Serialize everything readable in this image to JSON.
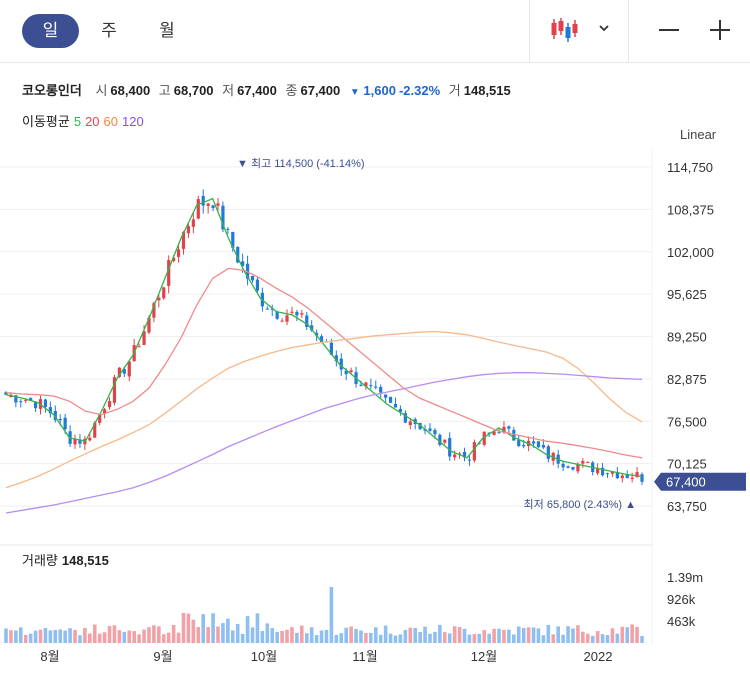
{
  "tabs": [
    {
      "label": "일",
      "active": true
    },
    {
      "label": "주",
      "active": false
    },
    {
      "label": "월",
      "active": false
    }
  ],
  "toolbar": {
    "chart_type_icon": "candlestick-icon",
    "dropdown_icon": "chevron-down-icon",
    "zoom_out_icon": "minus-icon",
    "zoom_in_icon": "plus-icon"
  },
  "quote": {
    "name": "코오롱인더",
    "open_label": "시",
    "open": "68,400",
    "high_label": "고",
    "high": "68,700",
    "low_label": "저",
    "low": "67,400",
    "close_label": "종",
    "close": "67,400",
    "change": "1,600",
    "change_pct": "-2.32%",
    "volume_label": "거",
    "volume": "148,515"
  },
  "moving_average": {
    "title": "이동평균",
    "periods": [
      {
        "label": "5",
        "color": "#36b24a"
      },
      {
        "label": "20",
        "color": "#e04848"
      },
      {
        "label": "60",
        "color": "#f0883c"
      },
      {
        "label": "120",
        "color": "#8a4fe0"
      }
    ]
  },
  "scale_label": "Linear",
  "volume_panel": {
    "title": "거래량",
    "value": "148,515"
  },
  "colors": {
    "up": "#e0424b",
    "down": "#1f7ad8",
    "up_vol": "#f2a1a6",
    "down_vol": "#8fbff0",
    "accent": "#3c4f92"
  },
  "chart_data": {
    "type": "candlestick",
    "y_ticks": [
      "114,750",
      "108,375",
      "102,000",
      "95,625",
      "89,250",
      "82,875",
      "76,500",
      "70,125",
      "63,750"
    ],
    "y_tick_values": [
      114750,
      108375,
      102000,
      95625,
      89250,
      82875,
      76500,
      70125,
      63750
    ],
    "x_ticks": [
      "8월",
      "9월",
      "10월",
      "11월",
      "12월",
      "2022"
    ],
    "volume_ticks": [
      "1.39m",
      "926k",
      "463k"
    ],
    "volume_tick_values": [
      1390000,
      926000,
      463000
    ],
    "current_price": "67,400",
    "high_annotation": {
      "label": "최고",
      "value": "114,500 (-41.14%)"
    },
    "low_annotation": {
      "label": "최저",
      "value": "65,800 (2.43%)"
    },
    "ma_levels": {
      "ma5": [
        80500,
        80000,
        79300,
        77500,
        74000,
        73500,
        78000,
        83000,
        86500,
        92000,
        98000,
        104000,
        109000,
        110000,
        104000,
        99000,
        95000,
        93000,
        92500,
        91000,
        88000,
        85000,
        83000,
        81000,
        79000,
        77500,
        76000,
        74000,
        72000,
        71000,
        74000,
        75500,
        74000,
        73000,
        71500,
        70500,
        70000,
        69500,
        69000,
        68500,
        68200
      ],
      "ma20": [
        80800,
        80600,
        80500,
        80300,
        79500,
        78000,
        77500,
        78300,
        79500,
        81500,
        85000,
        89000,
        94000,
        98000,
        99500,
        99200,
        98000,
        96500,
        95200,
        93500,
        91500,
        89500,
        87500,
        85500,
        83500,
        81500,
        80000,
        79000,
        78000,
        77000,
        76000,
        75000,
        74500,
        74000,
        73500,
        73200,
        72800,
        72400,
        71900,
        71400,
        71000
      ],
      "ma60": [
        66500,
        67300,
        68200,
        69300,
        70500,
        71600,
        72700,
        73700,
        74800,
        76000,
        77700,
        79500,
        81400,
        83000,
        84500,
        85500,
        86300,
        87000,
        87600,
        88000,
        88400,
        88700,
        89000,
        89300,
        89500,
        89700,
        89900,
        90000,
        89800,
        89500,
        89000,
        88400,
        87900,
        87400,
        86900,
        86000,
        84400,
        82200,
        79800,
        77800,
        76400
      ],
      "ma120": [
        62700,
        63100,
        63500,
        63900,
        64400,
        64900,
        65400,
        65900,
        66500,
        67300,
        68200,
        69300,
        70400,
        71500,
        72700,
        73700,
        74700,
        75700,
        76600,
        77500,
        78400,
        79100,
        79800,
        80400,
        80900,
        81400,
        81900,
        82400,
        82800,
        83200,
        83500,
        83700,
        83800,
        83800,
        83700,
        83600,
        83400,
        83200,
        83000,
        82900,
        82800
      ]
    }
  }
}
